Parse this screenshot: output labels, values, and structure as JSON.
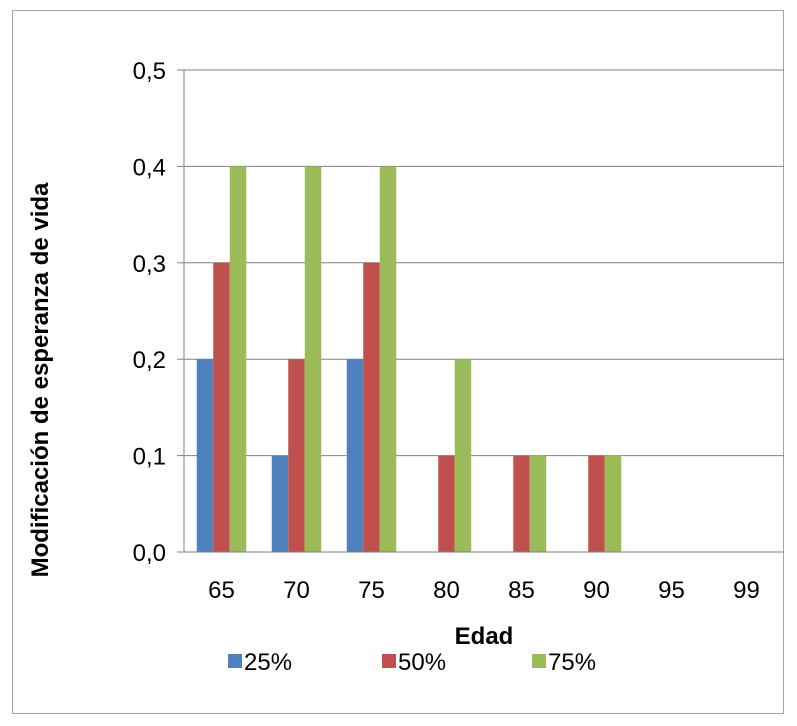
{
  "chart_data": {
    "type": "bar",
    "title": "",
    "xlabel": "Edad",
    "ylabel": "Modificación de esperanza de vida",
    "categories": [
      "65",
      "70",
      "75",
      "80",
      "85",
      "90",
      "95",
      "99"
    ],
    "ylim": [
      0,
      0.5
    ],
    "yticks": [
      "0,0",
      "0,1",
      "0,2",
      "0,3",
      "0,4",
      "0,5"
    ],
    "grid": true,
    "legend_position": "bottom",
    "series": [
      {
        "name": "25%",
        "color": "#4f81bd",
        "values": [
          0.2,
          0.1,
          0.2,
          0,
          0,
          0,
          0,
          0
        ]
      },
      {
        "name": "50%",
        "color": "#c0504d",
        "values": [
          0.3,
          0.2,
          0.3,
          0.1,
          0.1,
          0.1,
          0,
          0
        ]
      },
      {
        "name": "75%",
        "color": "#9bbb59",
        "values": [
          0.4,
          0.4,
          0.4,
          0.2,
          0.1,
          0.1,
          0,
          0
        ]
      }
    ]
  }
}
